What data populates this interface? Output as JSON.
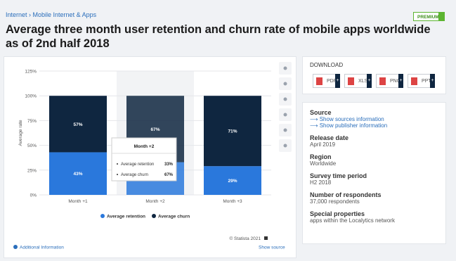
{
  "breadcrumb": [
    "Internet",
    "Mobile Internet & Apps"
  ],
  "premium": "PREMIUM",
  "title": "Average three month user retention and churn rate of mobile apps worldwide as of 2nd half 2018",
  "chart_data": {
    "type": "bar",
    "stacked": true,
    "categories": [
      "Month +1",
      "Month +2",
      "Month +3"
    ],
    "series": [
      {
        "name": "Average retention",
        "color": "#2a78dc",
        "values": [
          43,
          33,
          29
        ],
        "value_labels": [
          "43%",
          "33%",
          "29%"
        ]
      },
      {
        "name": "Average churn",
        "color": "#0f2640",
        "values": [
          57,
          67,
          71
        ],
        "value_labels": [
          "57%",
          "67%",
          "71%"
        ]
      }
    ],
    "ylabel": "Average rate",
    "ylim": [
      0,
      125
    ],
    "yticks": [
      {
        "value": 0,
        "label": "0%"
      },
      {
        "value": 25,
        "label": "25%"
      },
      {
        "value": 50,
        "label": "50%"
      },
      {
        "value": 75,
        "label": "75%"
      },
      {
        "value": 100,
        "label": "100%"
      },
      {
        "value": 125,
        "label": "125%"
      }
    ],
    "grid": true
  },
  "copyright": "© Statista 2021",
  "additional_info": "Additional Information",
  "show_source": "Show source",
  "download": {
    "title": "DOWNLOAD",
    "buttons": [
      "PDF",
      "XLS",
      "PNG",
      "PPT"
    ]
  },
  "info": {
    "source_label": "Source",
    "source_links": [
      "Show sources information",
      "Show publisher information"
    ],
    "items": [
      {
        "label": "Release date",
        "value": "April 2019"
      },
      {
        "label": "Region",
        "value": "Worldwide"
      },
      {
        "label": "Survey time period",
        "value": "H2 2018"
      },
      {
        "label": "Number of respondents",
        "value": "37,000 respondents"
      },
      {
        "label": "Special properties",
        "value": "apps within the Localytics network"
      }
    ]
  }
}
